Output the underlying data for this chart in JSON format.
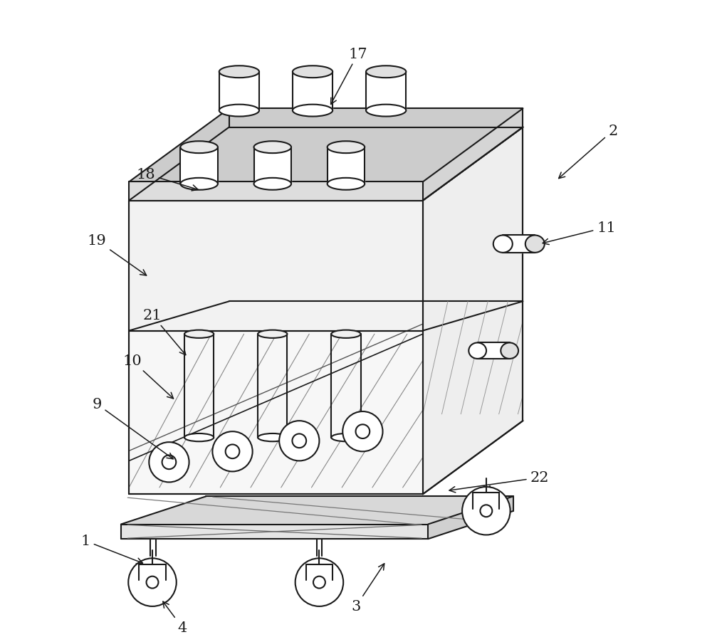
{
  "bg_color": "#ffffff",
  "line_color": "#1a1a1a",
  "lw": 1.5,
  "fig_width": 10.0,
  "fig_height": 9.03
}
